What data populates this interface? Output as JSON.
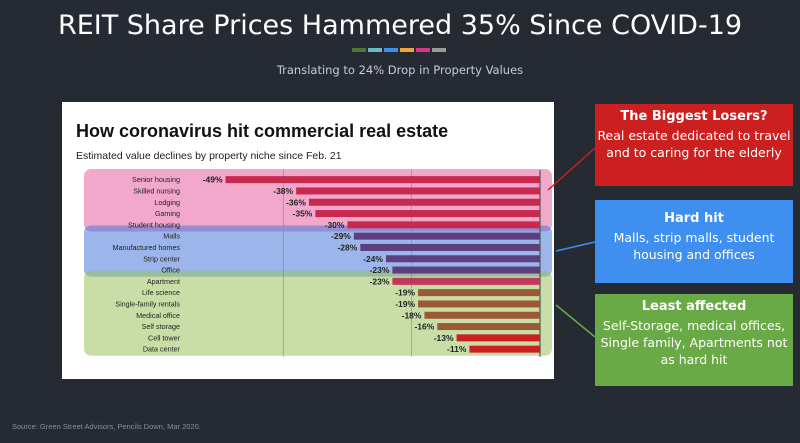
{
  "slide": {
    "title": "REIT Share Prices Hammered 35% Since COVID-19",
    "subtitle": "Translating to 24% Drop in Property Values",
    "accent_colors": [
      "#4a7a3a",
      "#6fb7c7",
      "#3e8ff0",
      "#f2a33a",
      "#d8348a",
      "#9a9a9a"
    ],
    "source": "Source: Green Street Advisors, Pencils Down, Mar 2020."
  },
  "callouts": {
    "biggest": {
      "title": "The Biggest Losers?",
      "body": "Real estate dedicated to travel and to caring for the elderly",
      "color": "#cc1f1f"
    },
    "hard": {
      "title": "Hard hit",
      "body": "Malls, strip malls, student housing and offices",
      "color": "#3e8ff0"
    },
    "least": {
      "title": "Least affected",
      "body": "Self-Storage, medical offices, Single family, Apartments not as hard hit",
      "color": "#6aaa46"
    }
  },
  "chart_data": {
    "type": "bar",
    "orientation": "horizontal",
    "title": "How coronavirus hit commercial real estate",
    "subtitle": "Estimated value declines by property niche since Feb. 21",
    "categories": [
      "Senior housing",
      "Skilled nursing",
      "Lodging",
      "Gaming",
      "Student housing",
      "Malls",
      "Manufactured homes",
      "Strip center",
      "Office",
      "Apartment",
      "Life science",
      "Single-family rentals",
      "Medical office",
      "Self storage",
      "Cell tower",
      "Data center"
    ],
    "values": [
      -49,
      -38,
      -36,
      -35,
      -30,
      -29,
      -28,
      -24,
      -23,
      -23,
      -19,
      -19,
      -18,
      -16,
      -13,
      -11
    ],
    "value_labels": [
      "-49%",
      "-38%",
      "-36%",
      "-35%",
      "-30%",
      "-29%",
      "-28%",
      "-24%",
      "-23%",
      "-23%",
      "-19%",
      "-19%",
      "-18%",
      "-16%",
      "-13%",
      "-11%"
    ],
    "bar_colors": [
      "#c72a4e",
      "#c72a4e",
      "#c72a4e",
      "#c72a4e",
      "#c72a4e",
      "#5c3f7c",
      "#5c3f7c",
      "#5c3f7c",
      "#5c3f7c",
      "#c0395c",
      "#9a5a35",
      "#9a5a35",
      "#9a5a35",
      "#9a5a35",
      "#cc2020",
      "#cc2020"
    ],
    "xlim": [
      -55,
      0
    ],
    "gridlines": [
      -40,
      -20,
      0
    ],
    "grid": true,
    "group_highlights": [
      {
        "label": "biggest-losers",
        "color": "#e8609e",
        "from": 0,
        "to": 4
      },
      {
        "label": "hard-hit",
        "color": "#4a78d8",
        "from": 5,
        "to": 8
      },
      {
        "label": "least-affected",
        "color": "#9cc25c",
        "from": 9,
        "to": 15
      }
    ]
  }
}
